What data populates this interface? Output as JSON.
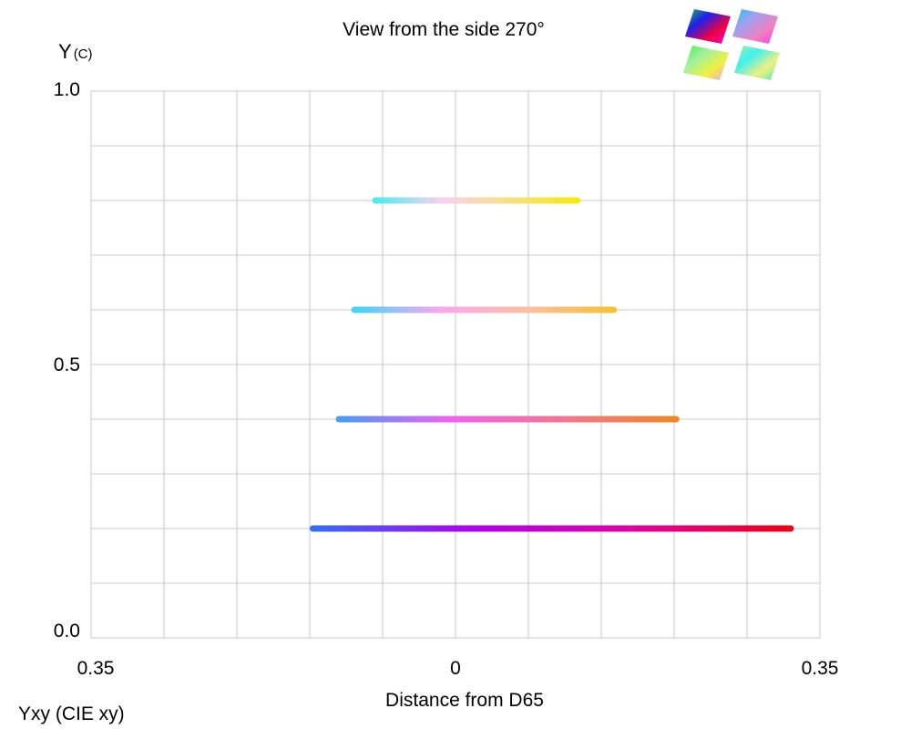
{
  "chart_data": {
    "type": "scatter",
    "title": "View from the side 270°",
    "ylabel": "Y",
    "ylabel_sub": "(C)",
    "xlabel": "Distance from D65",
    "footer": "Yxy (CIE xy)",
    "xlim": [
      -0.35,
      0.35
    ],
    "ylim": [
      0.0,
      1.0
    ],
    "x_tick_labels": [
      {
        "value": -0.35,
        "label": "0.35"
      },
      {
        "value": 0,
        "label": "0"
      },
      {
        "value": 0.35,
        "label": "0.35"
      }
    ],
    "y_tick_labels": [
      {
        "value": 1.0,
        "label": "1.0"
      },
      {
        "value": 0.5,
        "label": "0.5"
      },
      {
        "value": 0.0,
        "label": "0.0"
      }
    ],
    "x_grid_step": 0.07,
    "y_grid_step": 0.1,
    "grid": true,
    "series": [
      {
        "y": 0.8,
        "x_start": -0.08,
        "x_end": 0.12,
        "colors": [
          "#40f0f0",
          "#f8d0f0",
          "#f8e080",
          "#f8e800"
        ]
      },
      {
        "y": 0.6,
        "x_start": -0.1,
        "x_end": 0.155,
        "colors": [
          "#38d8f8",
          "#f8a8f0",
          "#f8c0a0",
          "#f8c030"
        ]
      },
      {
        "y": 0.4,
        "x_start": -0.115,
        "x_end": 0.215,
        "colors": [
          "#40a0f8",
          "#f060f0",
          "#f07890",
          "#f08820"
        ]
      },
      {
        "y": 0.2,
        "x_start": -0.14,
        "x_end": 0.325,
        "colors": [
          "#3070f8",
          "#b000f0",
          "#e000a0",
          "#f00010"
        ]
      }
    ]
  },
  "thumbnail": {
    "icon": "color-cube-views-icon",
    "tiles": [
      {
        "colors": [
          "#20c040",
          "#2020f0",
          "#f00040",
          "#f000f0"
        ]
      },
      {
        "colors": [
          "#20c0f0",
          "#a0a0f0",
          "#f080c0",
          "#f040f0"
        ]
      },
      {
        "colors": [
          "#40f040",
          "#a0f0a0",
          "#f0f040",
          "#f0a0f0"
        ]
      },
      {
        "colors": [
          "#a0f0a0",
          "#40f0f0",
          "#f0f080",
          "#40f0c0"
        ]
      }
    ]
  }
}
